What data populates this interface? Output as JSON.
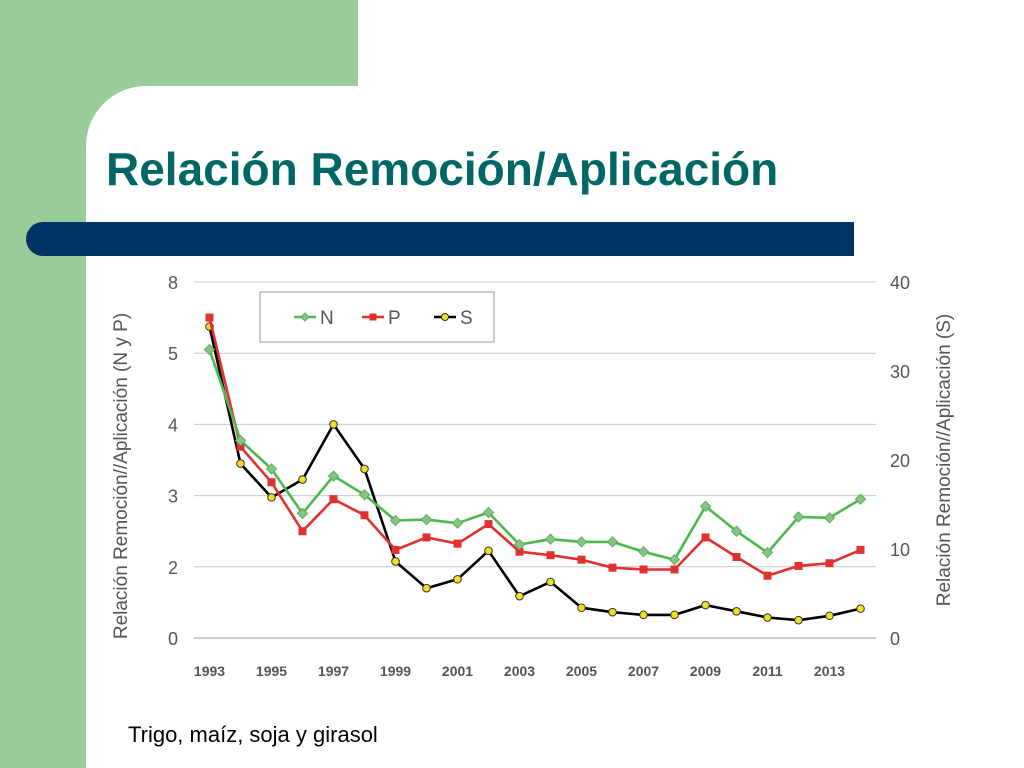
{
  "slide": {
    "title": "Relación Remoción/Aplicación",
    "caption": "Trigo, maíz, soja y girasol"
  },
  "chart_data": {
    "type": "line",
    "x": [
      1993,
      1994,
      1995,
      1996,
      1997,
      1998,
      1999,
      2000,
      2001,
      2002,
      2003,
      2004,
      2005,
      2006,
      2007,
      2008,
      2009,
      2010,
      2011,
      2012,
      2013,
      2014
    ],
    "x_tick_labels": [
      "1993",
      "1995",
      "1997",
      "1999",
      "2001",
      "2003",
      "2005",
      "2007",
      "2009",
      "2011",
      "2013"
    ],
    "ylabel_left": "Relación Remoción//Aplicación (N y P)",
    "ylabel_right": "Relación Remoción//Aplicación (S)",
    "y_left_ticks": [
      "0",
      "2",
      "3",
      "4",
      "5",
      "8"
    ],
    "y_right_ticks": [
      "0",
      "10",
      "20",
      "30",
      "40"
    ],
    "y_right_lim": [
      0,
      40
    ],
    "grid": true,
    "legend_position": "top-left",
    "series": [
      {
        "name": "N",
        "axis": "right",
        "color": "#4cb84c",
        "values": [
          32.4,
          22.2,
          19.0,
          14.0,
          18.2,
          16.1,
          13.2,
          13.3,
          12.9,
          14.1,
          10.5,
          11.1,
          10.8,
          10.8,
          9.7,
          8.8,
          14.8,
          12.0,
          9.6,
          13.6,
          13.5,
          15.6
        ]
      },
      {
        "name": "P",
        "axis": "right",
        "color": "#e03030",
        "values": [
          36.0,
          21.5,
          17.5,
          12.0,
          15.6,
          13.8,
          9.9,
          11.3,
          10.6,
          12.8,
          9.7,
          9.3,
          8.8,
          7.9,
          7.7,
          7.7,
          11.3,
          9.1,
          7.0,
          8.1,
          8.4,
          9.9
        ]
      },
      {
        "name": "S",
        "axis": "right",
        "color": "#000000",
        "marker_color": "#f0e020",
        "values": [
          35.0,
          19.6,
          15.8,
          17.8,
          24.0,
          19.0,
          8.6,
          5.6,
          6.6,
          9.8,
          4.7,
          6.3,
          3.4,
          2.9,
          2.6,
          2.6,
          3.7,
          3.0,
          2.3,
          2.0,
          2.5,
          3.3
        ]
      }
    ]
  }
}
